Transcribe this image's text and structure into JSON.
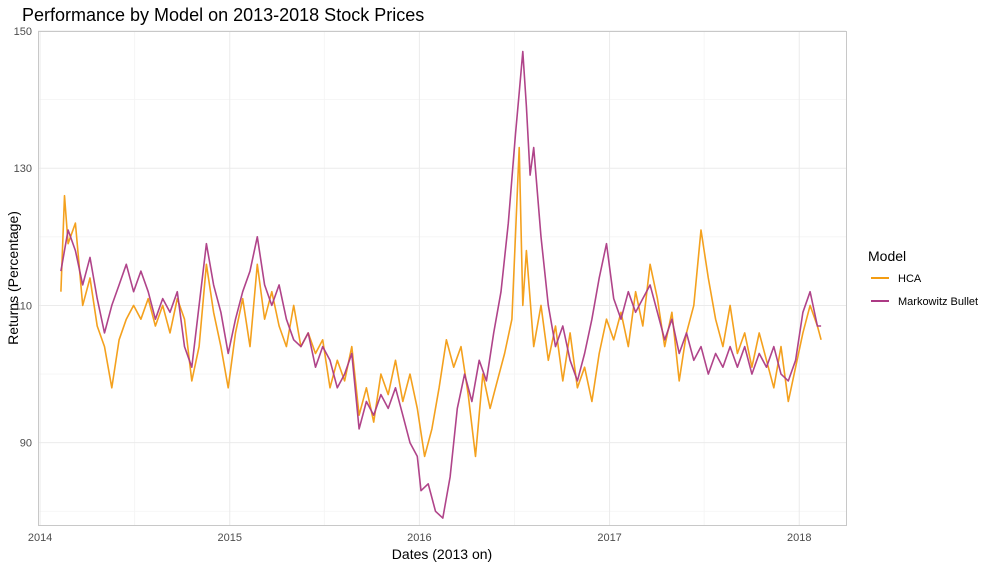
{
  "chart_data": {
    "type": "line",
    "title": "Performance by Model on 2013-2018 Stock Prices",
    "xlabel": "Dates (2013 on)",
    "ylabel": "Returns (Percentage)",
    "xlim": [
      "2013-12-28",
      "2018-04-01"
    ],
    "ylim": [
      78,
      150
    ],
    "x_ticks": [
      "2014",
      "2015",
      "2016",
      "2017",
      "2018"
    ],
    "y_ticks": [
      "90",
      "110",
      "130",
      "150"
    ],
    "grid": true,
    "legend": {
      "title": "Model",
      "position": "right"
    },
    "series": [
      {
        "name": "HCA",
        "color": "#F39C12",
        "points": [
          [
            "2014-02-10",
            112
          ],
          [
            "2014-02-17",
            126
          ],
          [
            "2014-02-24",
            119
          ],
          [
            "2014-03-10",
            122
          ],
          [
            "2014-03-24",
            110
          ],
          [
            "2014-04-07",
            114
          ],
          [
            "2014-04-21",
            107
          ],
          [
            "2014-05-05",
            104
          ],
          [
            "2014-05-19",
            98
          ],
          [
            "2014-06-02",
            105
          ],
          [
            "2014-06-16",
            108
          ],
          [
            "2014-06-30",
            110
          ],
          [
            "2014-07-14",
            108
          ],
          [
            "2014-07-28",
            111
          ],
          [
            "2014-08-11",
            107
          ],
          [
            "2014-08-25",
            110
          ],
          [
            "2014-09-08",
            106
          ],
          [
            "2014-09-22",
            111
          ],
          [
            "2014-10-06",
            108
          ],
          [
            "2014-10-20",
            99
          ],
          [
            "2014-11-03",
            104
          ],
          [
            "2014-11-17",
            116
          ],
          [
            "2014-12-01",
            109
          ],
          [
            "2014-12-15",
            104
          ],
          [
            "2014-12-29",
            98
          ],
          [
            "2015-01-12",
            106
          ],
          [
            "2015-01-26",
            111
          ],
          [
            "2015-02-09",
            104
          ],
          [
            "2015-02-23",
            116
          ],
          [
            "2015-03-09",
            108
          ],
          [
            "2015-03-23",
            112
          ],
          [
            "2015-04-06",
            107
          ],
          [
            "2015-04-20",
            104
          ],
          [
            "2015-05-04",
            110
          ],
          [
            "2015-05-18",
            104
          ],
          [
            "2015-06-01",
            106
          ],
          [
            "2015-06-15",
            103
          ],
          [
            "2015-06-29",
            105
          ],
          [
            "2015-07-13",
            98
          ],
          [
            "2015-07-27",
            102
          ],
          [
            "2015-08-10",
            99
          ],
          [
            "2015-08-24",
            104
          ],
          [
            "2015-09-07",
            94
          ],
          [
            "2015-09-21",
            98
          ],
          [
            "2015-10-05",
            93
          ],
          [
            "2015-10-19",
            100
          ],
          [
            "2015-11-02",
            97
          ],
          [
            "2015-11-16",
            102
          ],
          [
            "2015-11-30",
            96
          ],
          [
            "2015-12-14",
            100
          ],
          [
            "2015-12-28",
            95
          ],
          [
            "2016-01-11",
            88
          ],
          [
            "2016-01-25",
            92
          ],
          [
            "2016-02-08",
            98
          ],
          [
            "2016-02-22",
            105
          ],
          [
            "2016-03-07",
            101
          ],
          [
            "2016-03-21",
            104
          ],
          [
            "2016-04-04",
            97
          ],
          [
            "2016-04-18",
            88
          ],
          [
            "2016-05-02",
            100
          ],
          [
            "2016-05-16",
            95
          ],
          [
            "2016-05-30",
            99
          ],
          [
            "2016-06-13",
            103
          ],
          [
            "2016-06-27",
            108
          ],
          [
            "2016-07-11",
            133
          ],
          [
            "2016-07-18",
            110
          ],
          [
            "2016-07-25",
            118
          ],
          [
            "2016-08-08",
            104
          ],
          [
            "2016-08-22",
            110
          ],
          [
            "2016-09-05",
            102
          ],
          [
            "2016-09-19",
            107
          ],
          [
            "2016-10-03",
            99
          ],
          [
            "2016-10-17",
            106
          ],
          [
            "2016-10-31",
            98
          ],
          [
            "2016-11-14",
            101
          ],
          [
            "2016-11-28",
            96
          ],
          [
            "2016-12-12",
            103
          ],
          [
            "2016-12-26",
            108
          ],
          [
            "2017-01-09",
            105
          ],
          [
            "2017-01-23",
            109
          ],
          [
            "2017-02-06",
            104
          ],
          [
            "2017-02-20",
            112
          ],
          [
            "2017-03-06",
            107
          ],
          [
            "2017-03-20",
            116
          ],
          [
            "2017-04-03",
            111
          ],
          [
            "2017-04-17",
            104
          ],
          [
            "2017-05-01",
            109
          ],
          [
            "2017-05-15",
            99
          ],
          [
            "2017-05-29",
            106
          ],
          [
            "2017-06-12",
            110
          ],
          [
            "2017-06-26",
            121
          ],
          [
            "2017-07-10",
            114
          ],
          [
            "2017-07-24",
            108
          ],
          [
            "2017-08-07",
            104
          ],
          [
            "2017-08-21",
            110
          ],
          [
            "2017-09-04",
            103
          ],
          [
            "2017-09-18",
            106
          ],
          [
            "2017-10-02",
            101
          ],
          [
            "2017-10-16",
            106
          ],
          [
            "2017-10-30",
            102
          ],
          [
            "2017-11-13",
            98
          ],
          [
            "2017-11-27",
            104
          ],
          [
            "2017-12-11",
            96
          ],
          [
            "2017-12-25",
            101
          ],
          [
            "2018-01-08",
            106
          ],
          [
            "2018-01-22",
            110
          ],
          [
            "2018-02-05",
            107
          ],
          [
            "2018-02-12",
            105
          ]
        ]
      },
      {
        "name": "Markowitz Bullet",
        "color": "#AC3A84",
        "points": [
          [
            "2014-02-10",
            115
          ],
          [
            "2014-02-24",
            121
          ],
          [
            "2014-03-10",
            118
          ],
          [
            "2014-03-24",
            113
          ],
          [
            "2014-04-07",
            117
          ],
          [
            "2014-04-21",
            111
          ],
          [
            "2014-05-05",
            106
          ],
          [
            "2014-05-19",
            110
          ],
          [
            "2014-06-02",
            113
          ],
          [
            "2014-06-16",
            116
          ],
          [
            "2014-06-30",
            112
          ],
          [
            "2014-07-14",
            115
          ],
          [
            "2014-07-28",
            112
          ],
          [
            "2014-08-11",
            108
          ],
          [
            "2014-08-25",
            111
          ],
          [
            "2014-09-08",
            109
          ],
          [
            "2014-09-22",
            112
          ],
          [
            "2014-10-06",
            104
          ],
          [
            "2014-10-20",
            101
          ],
          [
            "2014-11-03",
            110
          ],
          [
            "2014-11-17",
            119
          ],
          [
            "2014-12-01",
            113
          ],
          [
            "2014-12-15",
            109
          ],
          [
            "2014-12-29",
            103
          ],
          [
            "2015-01-12",
            108
          ],
          [
            "2015-01-26",
            112
          ],
          [
            "2015-02-09",
            115
          ],
          [
            "2015-02-23",
            120
          ],
          [
            "2015-03-09",
            113
          ],
          [
            "2015-03-23",
            110
          ],
          [
            "2015-04-06",
            113
          ],
          [
            "2015-04-20",
            108
          ],
          [
            "2015-05-04",
            105
          ],
          [
            "2015-05-18",
            104
          ],
          [
            "2015-06-01",
            106
          ],
          [
            "2015-06-15",
            101
          ],
          [
            "2015-06-29",
            104
          ],
          [
            "2015-07-13",
            102
          ],
          [
            "2015-07-27",
            98
          ],
          [
            "2015-08-10",
            100
          ],
          [
            "2015-08-24",
            103
          ],
          [
            "2015-09-07",
            92
          ],
          [
            "2015-09-21",
            96
          ],
          [
            "2015-10-05",
            94
          ],
          [
            "2015-10-19",
            97
          ],
          [
            "2015-11-02",
            95
          ],
          [
            "2015-11-16",
            98
          ],
          [
            "2015-11-30",
            94
          ],
          [
            "2015-12-14",
            90
          ],
          [
            "2015-12-28",
            88
          ],
          [
            "2016-01-04",
            83
          ],
          [
            "2016-01-18",
            84
          ],
          [
            "2016-02-01",
            80
          ],
          [
            "2016-02-15",
            79
          ],
          [
            "2016-02-29",
            85
          ],
          [
            "2016-03-14",
            95
          ],
          [
            "2016-03-28",
            100
          ],
          [
            "2016-04-11",
            96
          ],
          [
            "2016-04-25",
            102
          ],
          [
            "2016-05-09",
            99
          ],
          [
            "2016-05-23",
            106
          ],
          [
            "2016-06-06",
            112
          ],
          [
            "2016-06-20",
            122
          ],
          [
            "2016-07-04",
            135
          ],
          [
            "2016-07-11",
            141
          ],
          [
            "2016-07-18",
            147
          ],
          [
            "2016-07-25",
            139
          ],
          [
            "2016-08-01",
            129
          ],
          [
            "2016-08-08",
            133
          ],
          [
            "2016-08-22",
            120
          ],
          [
            "2016-09-05",
            110
          ],
          [
            "2016-09-19",
            104
          ],
          [
            "2016-10-03",
            107
          ],
          [
            "2016-10-17",
            102
          ],
          [
            "2016-10-31",
            99
          ],
          [
            "2016-11-14",
            103
          ],
          [
            "2016-11-28",
            108
          ],
          [
            "2016-12-12",
            114
          ],
          [
            "2016-12-26",
            119
          ],
          [
            "2017-01-09",
            111
          ],
          [
            "2017-01-23",
            108
          ],
          [
            "2017-02-06",
            112
          ],
          [
            "2017-02-20",
            109
          ],
          [
            "2017-03-06",
            111
          ],
          [
            "2017-03-20",
            113
          ],
          [
            "2017-04-03",
            109
          ],
          [
            "2017-04-17",
            105
          ],
          [
            "2017-05-01",
            108
          ],
          [
            "2017-05-15",
            103
          ],
          [
            "2017-05-29",
            106
          ],
          [
            "2017-06-12",
            102
          ],
          [
            "2017-06-26",
            104
          ],
          [
            "2017-07-10",
            100
          ],
          [
            "2017-07-24",
            103
          ],
          [
            "2017-08-07",
            101
          ],
          [
            "2017-08-21",
            104
          ],
          [
            "2017-09-04",
            101
          ],
          [
            "2017-09-18",
            104
          ],
          [
            "2017-10-02",
            100
          ],
          [
            "2017-10-16",
            103
          ],
          [
            "2017-10-30",
            101
          ],
          [
            "2017-11-13",
            104
          ],
          [
            "2017-11-27",
            100
          ],
          [
            "2017-12-11",
            99
          ],
          [
            "2017-12-25",
            102
          ],
          [
            "2018-01-08",
            109
          ],
          [
            "2018-01-22",
            112
          ],
          [
            "2018-02-05",
            107
          ],
          [
            "2018-02-12",
            107
          ]
        ]
      }
    ]
  }
}
